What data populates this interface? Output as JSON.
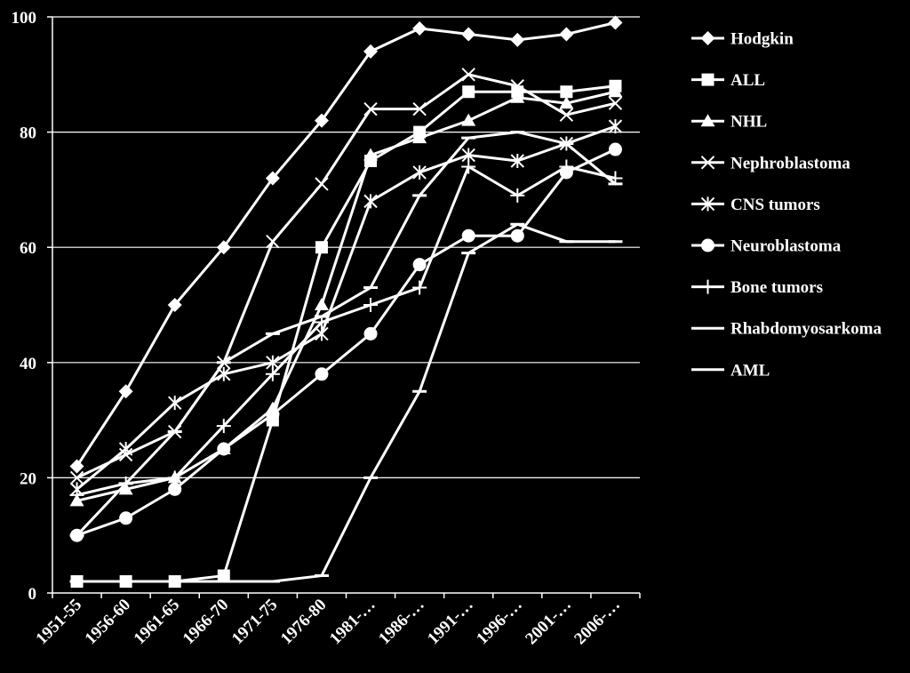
{
  "chart_data": {
    "type": "line",
    "title": "",
    "xlabel": "",
    "ylabel": "",
    "ylim": [
      0,
      100
    ],
    "yticks": [
      0,
      20,
      40,
      60,
      80,
      100
    ],
    "grid": true,
    "legend_position": "right",
    "categories": [
      "1951-55",
      "1956-60",
      "1961-65",
      "1966-70",
      "1971-75",
      "1976-80",
      "1981-…",
      "1986-…",
      "1991-…",
      "1996-…",
      "2001-…",
      "2006-…"
    ],
    "series": [
      {
        "name": "Hodgkin",
        "marker": "diamond",
        "values": [
          22,
          35,
          50,
          60,
          72,
          82,
          94,
          98,
          97,
          96,
          97,
          99
        ]
      },
      {
        "name": "ALL",
        "marker": "square",
        "values": [
          2,
          2,
          2,
          3,
          30,
          60,
          75,
          80,
          87,
          87,
          87,
          88
        ]
      },
      {
        "name": "NHL",
        "marker": "triangle",
        "values": [
          16,
          18,
          20,
          25,
          32,
          50,
          76,
          79,
          82,
          86,
          85,
          87
        ]
      },
      {
        "name": "Nephroblastoma",
        "marker": "x",
        "values": [
          20,
          24,
          28,
          40,
          61,
          71,
          84,
          84,
          90,
          88,
          83,
          85
        ]
      },
      {
        "name": "CNS tumors",
        "marker": "star",
        "values": [
          18,
          25,
          33,
          38,
          40,
          45,
          68,
          73,
          76,
          75,
          78,
          81
        ]
      },
      {
        "name": "Neuroblastoma",
        "marker": "circle",
        "values": [
          10,
          13,
          18,
          25,
          31,
          38,
          45,
          57,
          62,
          62,
          73,
          77
        ]
      },
      {
        "name": "Bone tumors",
        "marker": "plus",
        "values": [
          17,
          19,
          20,
          29,
          38,
          47,
          50,
          53,
          74,
          69,
          74,
          72
        ]
      },
      {
        "name": "Rhabdomyosarkoma",
        "marker": "dash",
        "values": [
          10,
          19,
          28,
          40,
          45,
          48,
          53,
          69,
          79,
          80,
          78,
          71
        ]
      },
      {
        "name": "AML",
        "marker": "dash",
        "values": [
          2,
          2,
          2,
          2,
          2,
          3,
          20,
          35,
          59,
          64,
          61,
          61
        ]
      }
    ]
  }
}
